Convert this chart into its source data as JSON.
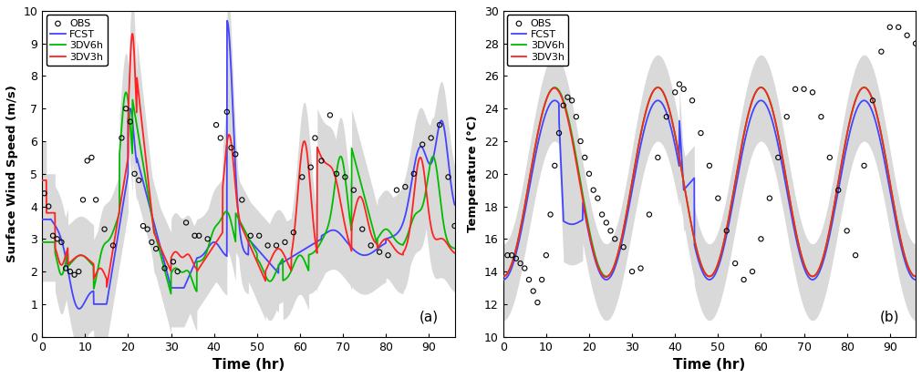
{
  "fig_width": 10.11,
  "fig_height": 4.15,
  "dpi": 100,
  "panel_a": {
    "ylabel": "Surface Wind Speed (m/s)",
    "xlabel": "Time (hr)",
    "xlim": [
      0,
      96
    ],
    "ylim": [
      0,
      10
    ],
    "yticks": [
      0,
      1,
      2,
      3,
      4,
      5,
      6,
      7,
      8,
      9,
      10
    ],
    "xticks": [
      0,
      10,
      20,
      30,
      40,
      50,
      60,
      70,
      80,
      90
    ],
    "label": "(a)",
    "shade_color": "#c0c0c0",
    "shade_alpha": 0.6,
    "fcst_color": "#4444ff",
    "dv6h_color": "#00bb00",
    "dv3h_color": "#ff2222"
  },
  "panel_b": {
    "ylabel": "Temperature (°C)",
    "xlabel": "Time (hr)",
    "xlim": [
      0,
      96
    ],
    "ylim": [
      10,
      30
    ],
    "yticks": [
      10,
      12,
      14,
      16,
      18,
      20,
      22,
      24,
      26,
      28,
      30
    ],
    "xticks": [
      0,
      10,
      20,
      30,
      40,
      50,
      60,
      70,
      80,
      90
    ],
    "label": "(b)",
    "shade_color": "#c0c0c0",
    "shade_alpha": 0.6,
    "fcst_color": "#4444ff",
    "dv6h_color": "#00bb00",
    "dv3h_color": "#ff2222"
  }
}
